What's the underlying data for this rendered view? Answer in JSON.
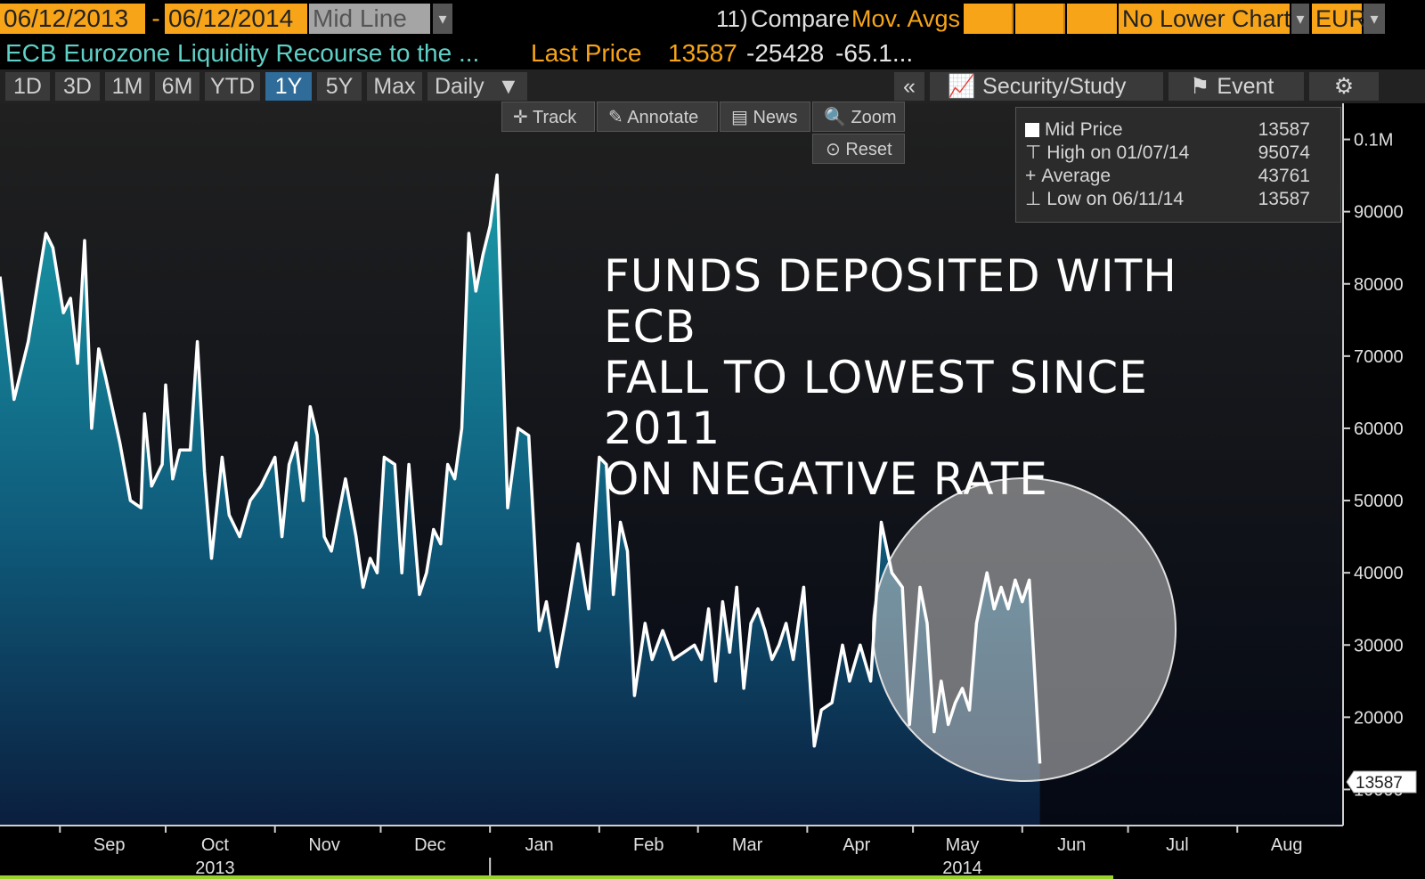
{
  "header": {
    "start_date": "06/12/2013",
    "separator": "-",
    "end_date": "06/12/2014",
    "line_mode": "Mid Line",
    "compare_num": "11)",
    "compare_label": "Compare",
    "compare_value": "Mov. Avgs",
    "lower_chart": "No Lower Chart",
    "currency": "EUR",
    "security_name": "ECB Eurozone Liquidity Recourse to the ...",
    "last_price_label": "Last Price",
    "last_price": "13587",
    "change": "-25428",
    "change_pct": "-65.1..."
  },
  "tabs": [
    "1D",
    "3D",
    "1M",
    "6M",
    "YTD",
    "1Y",
    "5Y",
    "Max"
  ],
  "active_tab": "1Y",
  "frequency": "Daily",
  "right_tabs": {
    "collapse": "«",
    "security_study": "Security/Study",
    "event": "Event"
  },
  "tools": {
    "track": "Track",
    "annotate": "Annotate",
    "news": "News",
    "zoom": "Zoom",
    "reset": "Reset"
  },
  "legend": {
    "mid_label": "Mid Price",
    "mid_value": "13587",
    "high_label": "High on 01/07/14",
    "high_value": "95074",
    "avg_label": "Average",
    "avg_value": "43761",
    "low_label": "Low on 06/11/14",
    "low_value": "13587"
  },
  "headline_lines": [
    "FUNDS DEPOSITED WITH ECB",
    "FALL TO LOWEST SINCE 2011",
    "ON NEGATIVE RATE"
  ],
  "colors": {
    "accent_orange": "#f7a418",
    "security_teal": "#5fd0c6",
    "fill_top": "#1a9aa8",
    "fill_bottom": "#0b1e3e",
    "line": "#ffffff",
    "active_tab": "#2f6c9a"
  },
  "chart_data": {
    "type": "area",
    "title": "",
    "xlabel": "",
    "ylabel": "",
    "ylim": [
      5000,
      105000
    ],
    "y_ticks": [
      10000,
      20000,
      30000,
      40000,
      50000,
      60000,
      70000,
      80000,
      90000,
      100000
    ],
    "y_tick_labels": [
      "10000",
      "20000",
      "30000",
      "40000",
      "50000",
      "60000",
      "70000",
      "80000",
      "90000",
      "0.1M"
    ],
    "x_range": [
      "2013-08-15",
      "2014-08-31"
    ],
    "month_labels": [
      "Sep",
      "Oct",
      "Nov",
      "Dec",
      "Jan",
      "Feb",
      "Mar",
      "Apr",
      "May",
      "Jun",
      "Jul",
      "Aug"
    ],
    "year_labels": [
      "2013",
      "2014"
    ],
    "last_value_label": "13587",
    "grid": false,
    "series": [
      {
        "values": [
          [
            "2013-08-15",
            81000
          ],
          [
            "2013-08-19",
            64000
          ],
          [
            "2013-08-23",
            72000
          ],
          [
            "2013-08-28",
            87000
          ],
          [
            "2013-08-30",
            85000
          ],
          [
            "2013-09-02",
            76000
          ],
          [
            "2013-09-04",
            78000
          ],
          [
            "2013-09-06",
            69000
          ],
          [
            "2013-09-08",
            86000
          ],
          [
            "2013-09-10",
            60000
          ],
          [
            "2013-09-12",
            71000
          ],
          [
            "2013-09-14",
            67000
          ],
          [
            "2013-09-18",
            58000
          ],
          [
            "2013-09-21",
            50000
          ],
          [
            "2013-09-24",
            49000
          ],
          [
            "2013-09-25",
            62000
          ],
          [
            "2013-09-27",
            52000
          ],
          [
            "2013-09-30",
            55000
          ],
          [
            "2013-10-01",
            66000
          ],
          [
            "2013-10-03",
            53000
          ],
          [
            "2013-10-05",
            57000
          ],
          [
            "2013-10-08",
            57000
          ],
          [
            "2013-10-10",
            72000
          ],
          [
            "2013-10-12",
            54000
          ],
          [
            "2013-10-14",
            42000
          ],
          [
            "2013-10-17",
            56000
          ],
          [
            "2013-10-19",
            48000
          ],
          [
            "2013-10-22",
            45000
          ],
          [
            "2013-10-25",
            50000
          ],
          [
            "2013-10-28",
            52000
          ],
          [
            "2013-10-30",
            54000
          ],
          [
            "2013-11-01",
            56000
          ],
          [
            "2013-11-03",
            45000
          ],
          [
            "2013-11-05",
            55000
          ],
          [
            "2013-11-07",
            58000
          ],
          [
            "2013-11-09",
            50000
          ],
          [
            "2013-11-11",
            63000
          ],
          [
            "2013-11-13",
            59000
          ],
          [
            "2013-11-15",
            45000
          ],
          [
            "2013-11-17",
            43000
          ],
          [
            "2013-11-19",
            48000
          ],
          [
            "2013-11-21",
            53000
          ],
          [
            "2013-11-24",
            45000
          ],
          [
            "2013-11-26",
            38000
          ],
          [
            "2013-11-28",
            42000
          ],
          [
            "2013-11-30",
            40000
          ],
          [
            "2013-12-02",
            56000
          ],
          [
            "2013-12-05",
            55000
          ],
          [
            "2013-12-07",
            40000
          ],
          [
            "2013-12-09",
            55000
          ],
          [
            "2013-12-12",
            37000
          ],
          [
            "2013-12-14",
            40000
          ],
          [
            "2013-12-16",
            46000
          ],
          [
            "2013-12-18",
            44000
          ],
          [
            "2013-12-20",
            55000
          ],
          [
            "2013-12-22",
            53000
          ],
          [
            "2013-12-24",
            60000
          ],
          [
            "2013-12-26",
            87000
          ],
          [
            "2013-12-28",
            79000
          ],
          [
            "2013-12-30",
            84000
          ],
          [
            "2014-01-01",
            88000
          ],
          [
            "2014-01-03",
            95074
          ],
          [
            "2014-01-06",
            49000
          ],
          [
            "2014-01-09",
            60000
          ],
          [
            "2014-01-12",
            59000
          ],
          [
            "2014-01-15",
            32000
          ],
          [
            "2014-01-17",
            36000
          ],
          [
            "2014-01-20",
            27000
          ],
          [
            "2014-01-23",
            35000
          ],
          [
            "2014-01-26",
            44000
          ],
          [
            "2014-01-29",
            35000
          ],
          [
            "2014-02-01",
            56000
          ],
          [
            "2014-02-03",
            55000
          ],
          [
            "2014-02-05",
            37000
          ],
          [
            "2014-02-07",
            47000
          ],
          [
            "2014-02-09",
            43000
          ],
          [
            "2014-02-11",
            23000
          ],
          [
            "2014-02-14",
            33000
          ],
          [
            "2014-02-16",
            28000
          ],
          [
            "2014-02-19",
            32000
          ],
          [
            "2014-02-22",
            28000
          ],
          [
            "2014-02-25",
            29000
          ],
          [
            "2014-02-28",
            30000
          ],
          [
            "2014-03-02",
            28000
          ],
          [
            "2014-03-04",
            35000
          ],
          [
            "2014-03-06",
            25000
          ],
          [
            "2014-03-08",
            36000
          ],
          [
            "2014-03-10",
            29000
          ],
          [
            "2014-03-12",
            38000
          ],
          [
            "2014-03-14",
            24000
          ],
          [
            "2014-03-16",
            33000
          ],
          [
            "2014-03-18",
            35000
          ],
          [
            "2014-03-20",
            32000
          ],
          [
            "2014-03-22",
            28000
          ],
          [
            "2014-03-24",
            30000
          ],
          [
            "2014-03-26",
            33000
          ],
          [
            "2014-03-28",
            28000
          ],
          [
            "2014-03-31",
            38000
          ],
          [
            "2014-04-03",
            16000
          ],
          [
            "2014-04-05",
            21000
          ],
          [
            "2014-04-08",
            22000
          ],
          [
            "2014-04-11",
            30000
          ],
          [
            "2014-04-13",
            25000
          ],
          [
            "2014-04-16",
            30000
          ],
          [
            "2014-04-19",
            25000
          ],
          [
            "2014-04-22",
            47000
          ],
          [
            "2014-04-25",
            40000
          ],
          [
            "2014-04-28",
            38000
          ],
          [
            "2014-04-30",
            19000
          ],
          [
            "2014-05-03",
            38000
          ],
          [
            "2014-05-05",
            33000
          ],
          [
            "2014-05-07",
            18000
          ],
          [
            "2014-05-09",
            25000
          ],
          [
            "2014-05-11",
            19000
          ],
          [
            "2014-05-13",
            22000
          ],
          [
            "2014-05-15",
            24000
          ],
          [
            "2014-05-17",
            21000
          ],
          [
            "2014-05-19",
            33000
          ],
          [
            "2014-05-22",
            40000
          ],
          [
            "2014-05-24",
            35000
          ],
          [
            "2014-05-26",
            38000
          ],
          [
            "2014-05-28",
            35000
          ],
          [
            "2014-05-30",
            39000
          ],
          [
            "2014-06-01",
            36000
          ],
          [
            "2014-06-03",
            39000
          ],
          [
            "2014-06-06",
            13587
          ]
        ]
      }
    ]
  }
}
